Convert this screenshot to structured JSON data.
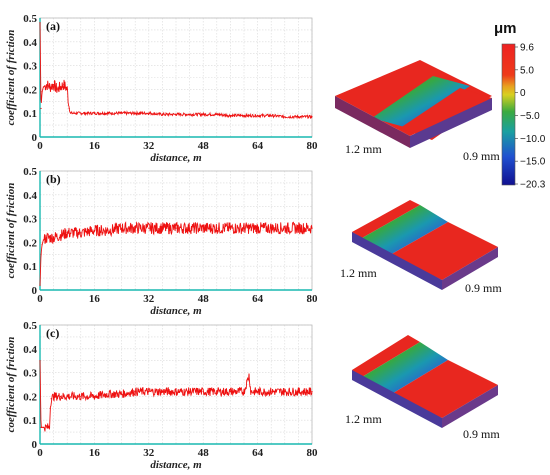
{
  "chart_data": [
    {
      "type": "line",
      "panel_label": "(a)",
      "xlabel": "distance, m",
      "ylabel": "coefficient of friction",
      "xlim": [
        0,
        80
      ],
      "ylim": [
        0,
        0.5
      ],
      "xticks": [
        "0",
        "16",
        "32",
        "48",
        "64",
        "80"
      ],
      "yticks": [
        "0",
        "0.1",
        "0.2",
        "0.3",
        "0.4",
        "0.5"
      ],
      "grid": true,
      "series": [
        {
          "color": "#ee1111",
          "x": [
            0,
            0.3,
            0.6,
            1.0,
            2,
            3,
            4,
            5,
            6,
            7,
            8,
            8.6,
            9,
            10,
            12,
            16,
            20,
            24,
            28,
            32,
            36,
            40,
            44,
            48,
            52,
            56,
            60,
            64,
            68,
            72,
            76,
            80
          ],
          "y": [
            0.48,
            0.12,
            0.19,
            0.21,
            0.22,
            0.21,
            0.22,
            0.2,
            0.21,
            0.22,
            0.2,
            0.12,
            0.1,
            0.1,
            0.1,
            0.1,
            0.1,
            0.1,
            0.1,
            0.1,
            0.095,
            0.095,
            0.095,
            0.095,
            0.095,
            0.09,
            0.09,
            0.09,
            0.09,
            0.085,
            0.085,
            0.085
          ]
        }
      ]
    },
    {
      "type": "line",
      "panel_label": "(b)",
      "xlabel": "distance, m",
      "ylabel": "coefficient of friction",
      "xlim": [
        0,
        80
      ],
      "ylim": [
        0,
        0.5
      ],
      "xticks": [
        "0",
        "16",
        "32",
        "48",
        "64",
        "80"
      ],
      "yticks": [
        "0",
        "0.1",
        "0.2",
        "0.3",
        "0.4",
        "0.5"
      ],
      "grid": true,
      "series": [
        {
          "color": "#ee1111",
          "x": [
            0,
            0.3,
            0.6,
            1.0,
            2,
            4,
            6,
            8,
            12,
            16,
            20,
            24,
            28,
            32,
            36,
            40,
            44,
            48,
            52,
            56,
            60,
            64,
            68,
            72,
            76,
            80
          ],
          "y": [
            0.02,
            0.15,
            0.19,
            0.21,
            0.22,
            0.22,
            0.23,
            0.24,
            0.24,
            0.25,
            0.25,
            0.26,
            0.26,
            0.26,
            0.26,
            0.26,
            0.26,
            0.26,
            0.26,
            0.26,
            0.26,
            0.26,
            0.26,
            0.26,
            0.26,
            0.26
          ]
        }
      ]
    },
    {
      "type": "line",
      "panel_label": "(c)",
      "xlabel": "distance, m",
      "ylabel": "coefficient of friction",
      "xlim": [
        0,
        80
      ],
      "ylim": [
        0,
        0.5
      ],
      "xticks": [
        "0",
        "16",
        "32",
        "48",
        "64",
        "80"
      ],
      "yticks": [
        "0",
        "0.1",
        "0.2",
        "0.3",
        "0.4",
        "0.5"
      ],
      "grid": true,
      "series": [
        {
          "color": "#ee1111",
          "x": [
            0,
            0.3,
            0.6,
            1.0,
            2,
            2.8,
            3.0,
            3.3,
            4,
            6,
            8,
            12,
            16,
            20,
            24,
            28,
            32,
            36,
            40,
            44,
            48,
            52,
            56,
            60,
            61.5,
            62,
            64,
            68,
            72,
            76,
            80
          ],
          "y": [
            0.35,
            0.07,
            0.07,
            0.07,
            0.07,
            0.07,
            0.15,
            0.19,
            0.2,
            0.2,
            0.2,
            0.2,
            0.2,
            0.21,
            0.21,
            0.22,
            0.22,
            0.22,
            0.22,
            0.22,
            0.22,
            0.22,
            0.22,
            0.22,
            0.29,
            0.22,
            0.22,
            0.22,
            0.22,
            0.22,
            0.22
          ]
        }
      ]
    }
  ],
  "colorbar": {
    "unit": "μm",
    "ticks": [
      "9.6",
      "5.0",
      "0",
      "−5.0",
      "−10.0",
      "−15.0",
      "−20.3"
    ],
    "colors": [
      "#ee2222",
      "#ee3a1a",
      "#d8d020",
      "#3aaa40",
      "#1aa0a0",
      "#2050d0",
      "#101090"
    ]
  },
  "profiles": [
    {
      "panel": "(a)",
      "width_label": "1.2 mm",
      "depth_label": "0.9 mm"
    },
    {
      "panel": "(b)",
      "width_label": "1.2 mm",
      "depth_label": "0.9 mm"
    },
    {
      "panel": "(c)",
      "width_label": "1.2 mm",
      "depth_label": "0.9 mm"
    }
  ]
}
